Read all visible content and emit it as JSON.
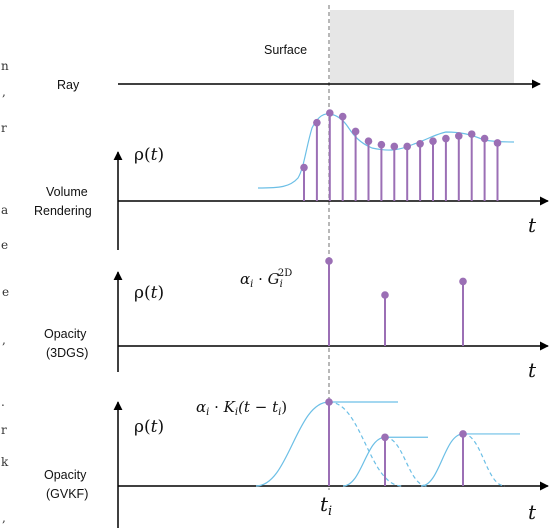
{
  "colors": {
    "stem": "#9b6fb5",
    "curve": "#6cbfe6",
    "surface_fill": "#e6e6e6",
    "guide": "#888888",
    "axis": "#000000"
  },
  "surface_label": "Surface",
  "ray_label": "Ray",
  "left_edge_glyphs": [
    "n",
    ",",
    "r",
    "a",
    "e",
    "e",
    ",",
    ".",
    "r",
    "k",
    ","
  ],
  "panels": {
    "volume": {
      "label_line1": "Volume",
      "label_line2": "Rendering",
      "rho_base": "ρ(",
      "rho_arg": "t",
      "rho_close": ")",
      "t_label": "t",
      "samples": [
        0.38,
        0.89,
        1.0,
        0.96,
        0.79,
        0.68,
        0.64,
        0.62,
        0.62,
        0.65,
        0.68,
        0.71,
        0.74,
        0.76,
        0.71,
        0.66
      ]
    },
    "opacity_3dgs": {
      "label_line1": "Opacity",
      "label_line2": "(3DGS)",
      "rho_base": "ρ(",
      "rho_arg": "t",
      "rho_close": ")",
      "t_label": "t",
      "annot_alpha": "α",
      "annot_i1": "i",
      "annot_dot": " · ",
      "annot_G": "G",
      "annot_i2": "i",
      "annot_sup": "2D",
      "stems": [
        1.0,
        0.6,
        0.76
      ]
    },
    "opacity_gvkf": {
      "label_line1": "Opacity",
      "label_line2": "(GVKF)",
      "rho_base": "ρ(",
      "rho_arg": "t",
      "rho_close": ")",
      "t_label": "t",
      "ti_base": "t",
      "ti_sub": "i",
      "annot_alpha": "α",
      "annot_i1": "i",
      "annot_dot": " · ",
      "annot_K": "K",
      "annot_i2": "i",
      "annot_open": "(t − t",
      "annot_i3": "i",
      "annot_close": ")",
      "kernels": [
        1.0,
        0.58,
        0.62
      ]
    }
  }
}
